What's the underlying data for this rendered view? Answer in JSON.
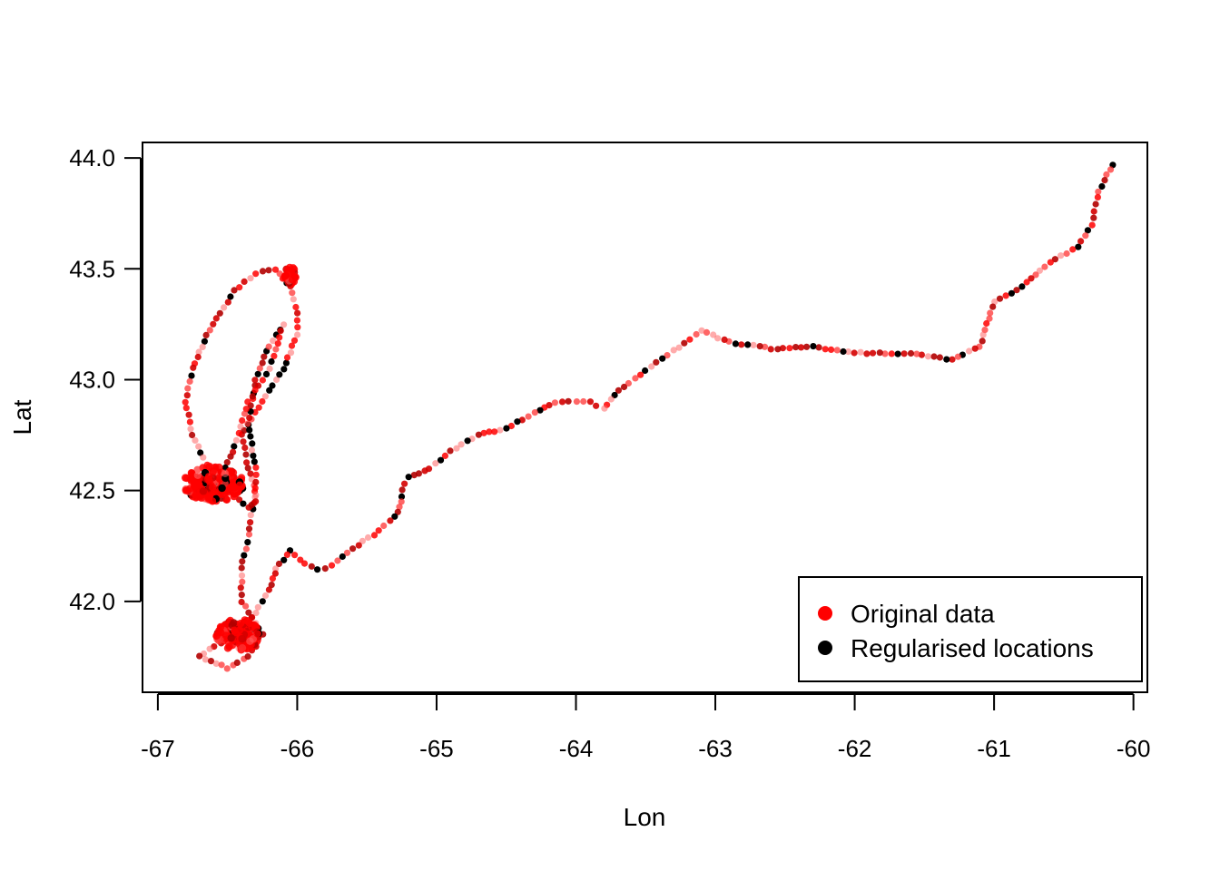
{
  "chart_data": {
    "type": "scatter",
    "title": "",
    "xlabel": "Lon",
    "ylabel": "Lat",
    "xlim": [
      -67.11,
      -59.9
    ],
    "ylim": [
      41.59,
      44.07
    ],
    "x_ticks": [
      -67,
      -66,
      -65,
      -64,
      -63,
      -62,
      -61,
      -60
    ],
    "x_tick_labels": [
      "-67",
      "-66",
      "-65",
      "-64",
      "-63",
      "-62",
      "-61",
      "-60"
    ],
    "y_ticks": [
      42.0,
      42.5,
      43.0,
      43.5,
      44.0
    ],
    "y_tick_labels": [
      "42.0",
      "42.5",
      "43.0",
      "43.5",
      "44.0"
    ],
    "grid": false,
    "legend": {
      "position": "bottom-right",
      "entries": [
        {
          "label": "Original data",
          "color": "#ff0000"
        },
        {
          "label": "Regularised locations",
          "color": "#000000"
        }
      ]
    },
    "colors": {
      "original": "#ff0000",
      "regularised": "#000000"
    },
    "track": [
      [
        -60.15,
        43.97
      ],
      [
        -60.25,
        43.85
      ],
      [
        -60.3,
        43.7
      ],
      [
        -60.4,
        43.6
      ],
      [
        -60.6,
        43.53
      ],
      [
        -60.8,
        43.42
      ],
      [
        -61.0,
        43.35
      ],
      [
        -61.05,
        43.25
      ],
      [
        -61.1,
        43.15
      ],
      [
        -61.3,
        43.09
      ],
      [
        -61.6,
        43.12
      ],
      [
        -62.0,
        43.12
      ],
      [
        -62.3,
        43.15
      ],
      [
        -62.6,
        43.14
      ],
      [
        -62.9,
        43.17
      ],
      [
        -63.1,
        43.22
      ],
      [
        -63.3,
        43.13
      ],
      [
        -63.5,
        43.04
      ],
      [
        -63.7,
        42.95
      ],
      [
        -63.8,
        42.87
      ],
      [
        -63.9,
        42.9
      ],
      [
        -64.0,
        42.9
      ],
      [
        -64.15,
        42.9
      ],
      [
        -64.3,
        42.85
      ],
      [
        -64.5,
        42.78
      ],
      [
        -64.7,
        42.75
      ],
      [
        -64.9,
        42.68
      ],
      [
        -65.05,
        42.6
      ],
      [
        -65.2,
        42.56
      ],
      [
        -65.25,
        42.5
      ],
      [
        -65.25,
        42.45
      ],
      [
        -65.3,
        42.38
      ],
      [
        -65.45,
        42.3
      ],
      [
        -65.6,
        42.24
      ],
      [
        -65.75,
        42.16
      ],
      [
        -65.85,
        42.14
      ],
      [
        -65.95,
        42.17
      ],
      [
        -66.05,
        42.23
      ],
      [
        -66.15,
        42.15
      ],
      [
        -66.2,
        42.05
      ],
      [
        -66.3,
        41.95
      ],
      [
        -66.4,
        41.85
      ],
      [
        -66.5,
        41.82
      ],
      [
        -66.6,
        41.8
      ],
      [
        -66.7,
        41.75
      ],
      [
        -66.5,
        41.7
      ],
      [
        -66.35,
        41.75
      ],
      [
        -66.25,
        41.85
      ],
      [
        -66.4,
        42.0
      ],
      [
        -66.4,
        42.15
      ],
      [
        -66.35,
        42.3
      ],
      [
        -66.3,
        42.5
      ],
      [
        -66.35,
        42.6
      ],
      [
        -66.4,
        42.75
      ],
      [
        -66.3,
        42.85
      ],
      [
        -66.2,
        42.95
      ],
      [
        -66.1,
        43.05
      ],
      [
        -66.0,
        43.2
      ],
      [
        -66.0,
        43.3
      ],
      [
        -66.05,
        43.42
      ],
      [
        -66.15,
        43.5
      ],
      [
        -66.3,
        43.48
      ],
      [
        -66.45,
        43.4
      ],
      [
        -66.55,
        43.3
      ],
      [
        -66.65,
        43.2
      ],
      [
        -66.75,
        43.05
      ],
      [
        -66.8,
        42.9
      ],
      [
        -66.75,
        42.75
      ],
      [
        -66.65,
        42.62
      ],
      [
        -66.55,
        42.55
      ],
      [
        -66.45,
        42.48
      ],
      [
        -66.35,
        42.42
      ],
      [
        -66.3,
        42.45
      ],
      [
        -66.3,
        42.6
      ],
      [
        -66.35,
        42.8
      ],
      [
        -66.3,
        43.0
      ],
      [
        -66.2,
        43.15
      ],
      [
        -66.1,
        43.25
      ],
      [
        -66.2,
        43.05
      ],
      [
        -66.35,
        42.9
      ],
      [
        -66.45,
        42.7
      ],
      [
        -66.55,
        42.55
      ],
      [
        -66.65,
        42.5
      ],
      [
        -66.8,
        42.55
      ]
    ],
    "clusters": [
      {
        "center": [
          -66.6,
          42.53
        ],
        "spread": [
          0.22,
          0.08
        ]
      },
      {
        "center": [
          -66.42,
          41.85
        ],
        "spread": [
          0.16,
          0.07
        ]
      },
      {
        "center": [
          -66.05,
          43.47
        ],
        "spread": [
          0.04,
          0.04
        ]
      }
    ]
  }
}
